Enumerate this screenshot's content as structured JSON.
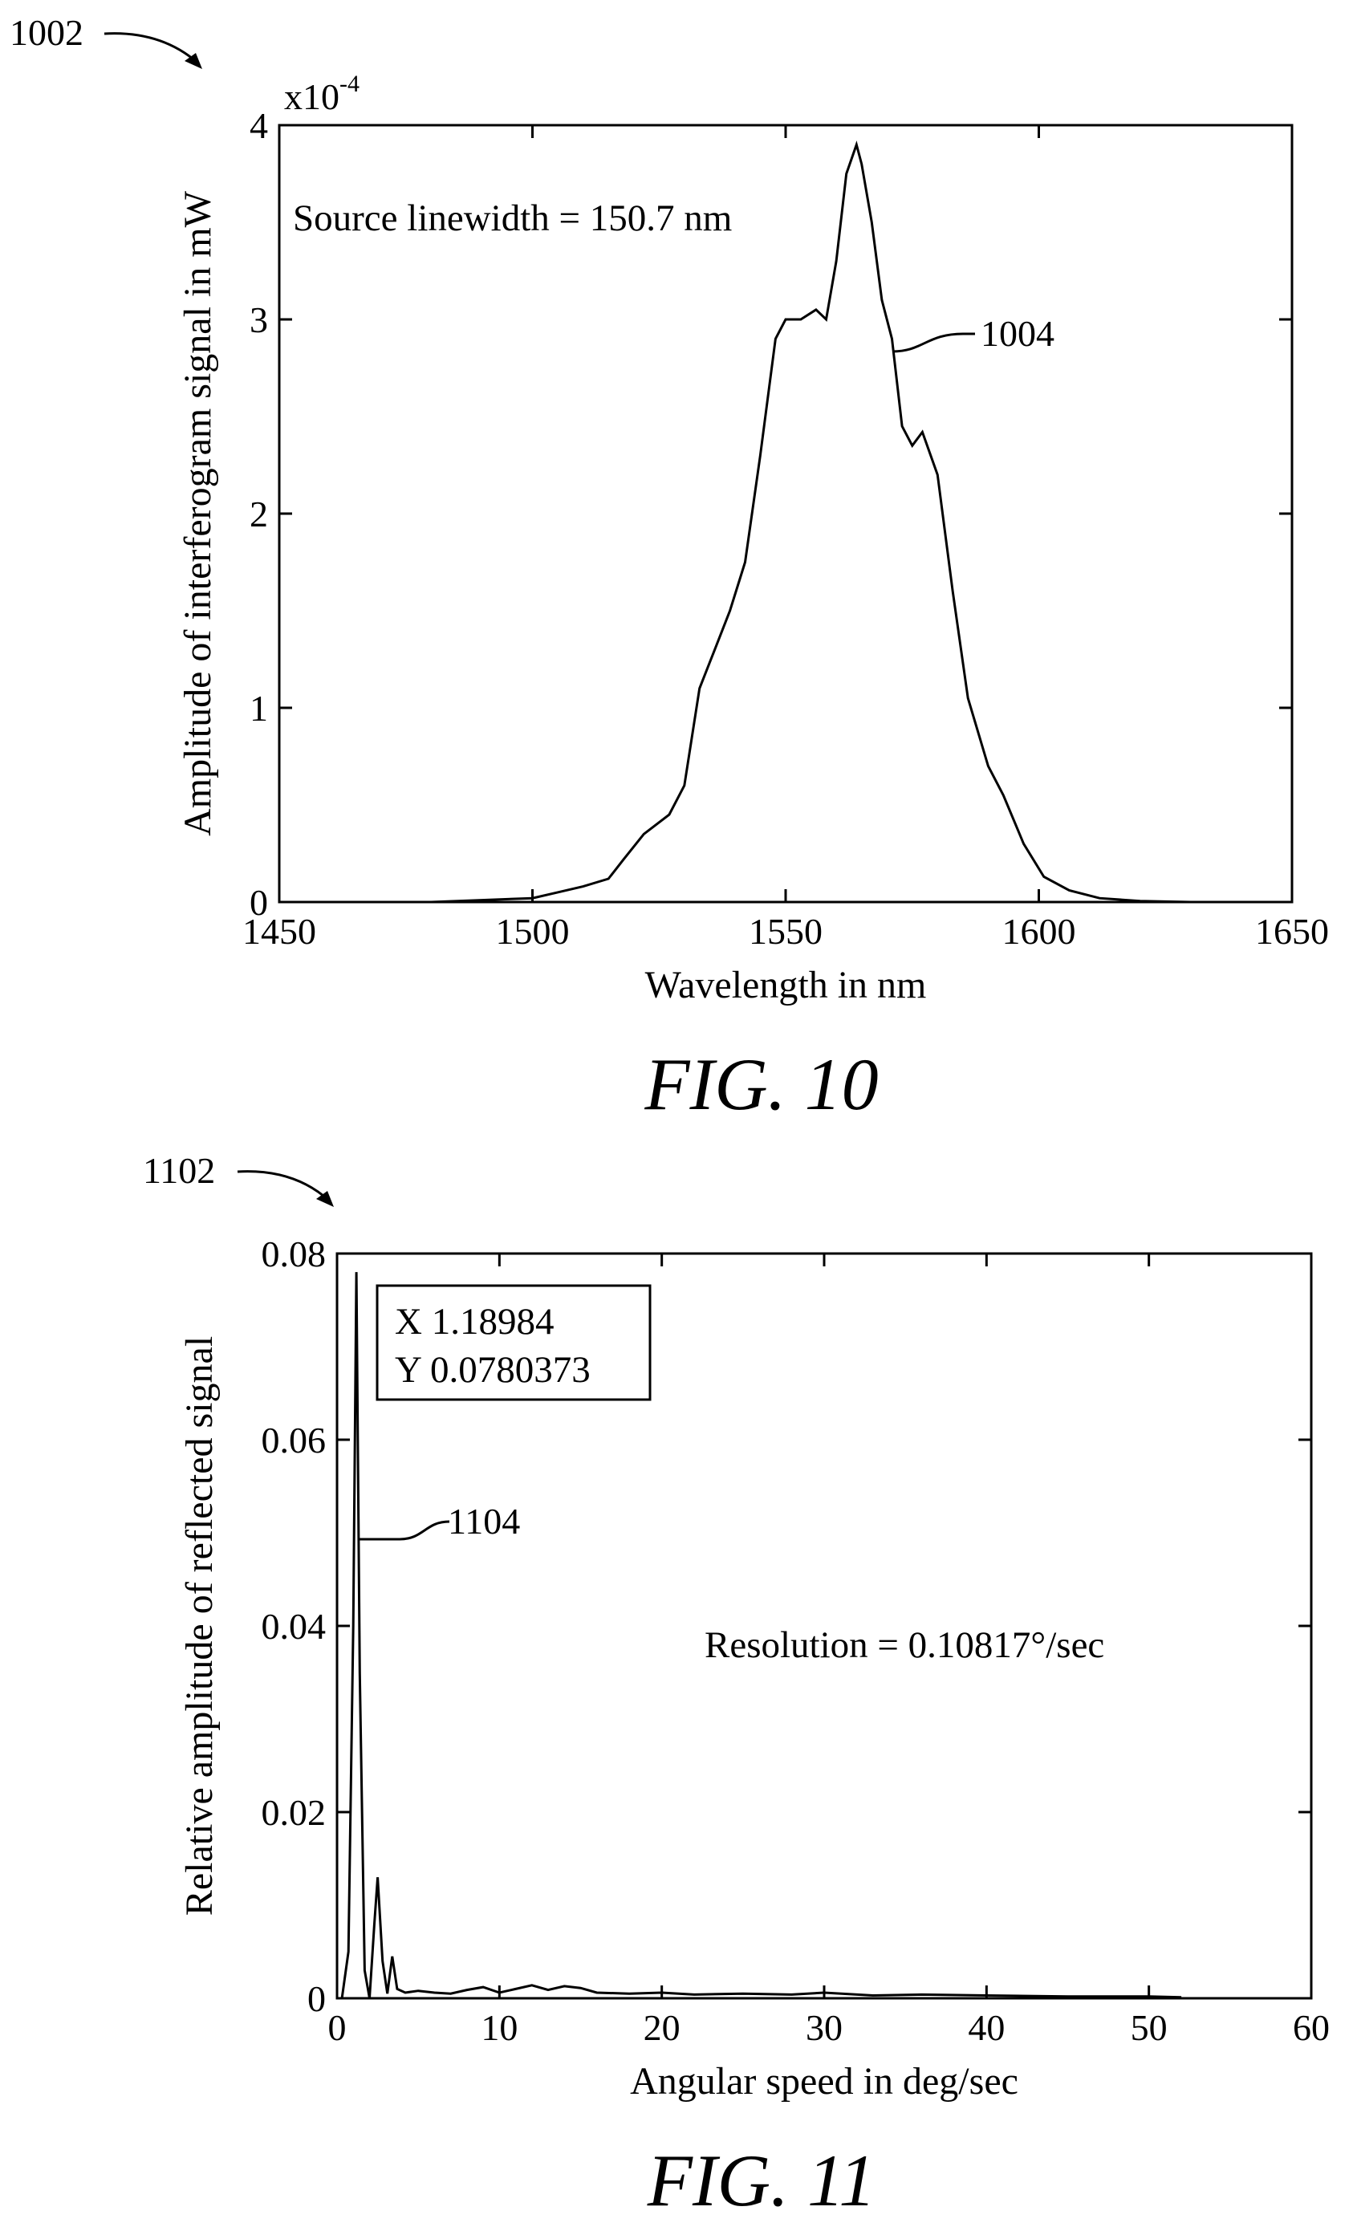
{
  "chart_data": [
    {
      "type": "line",
      "figure_label": "FIG. 10",
      "reference_numeral": "1002",
      "curve_numeral": "1004",
      "xlabel": "Wavelength in nm",
      "ylabel": "Amplitude of interferogram signal in mW",
      "y_multiplier": "x10",
      "y_exponent": "-4",
      "annotation": "Source linewidth = 150.7 nm",
      "xlim": [
        1450,
        1650
      ],
      "ylim": [
        0,
        4
      ],
      "xticks": [
        "1450",
        "1500",
        "1550",
        "1600",
        "1650"
      ],
      "yticks": [
        "0",
        "1",
        "2",
        "3",
        "4"
      ],
      "grid": false,
      "series": [
        {
          "x": [
            1480,
            1490,
            1500,
            1505,
            1510,
            1515,
            1518,
            1522,
            1527,
            1530,
            1533,
            1536,
            1539,
            1542,
            1545,
            1548,
            1550,
            1553,
            1556,
            1558,
            1560,
            1562,
            1564,
            1565,
            1567,
            1569,
            1571,
            1573,
            1575,
            1577,
            1580,
            1583,
            1586,
            1590,
            1593,
            1597,
            1601,
            1606,
            1612,
            1620,
            1630
          ],
          "y": [
            0.0,
            0.01,
            0.02,
            0.05,
            0.08,
            0.12,
            0.22,
            0.35,
            0.45,
            0.6,
            1.1,
            1.3,
            1.5,
            1.75,
            2.3,
            2.9,
            3.0,
            3.0,
            3.05,
            3.0,
            3.3,
            3.75,
            3.9,
            3.8,
            3.5,
            3.1,
            2.9,
            2.45,
            2.35,
            2.42,
            2.2,
            1.6,
            1.05,
            0.7,
            0.55,
            0.3,
            0.13,
            0.06,
            0.02,
            0.005,
            0.0
          ]
        }
      ]
    },
    {
      "type": "line",
      "figure_label": "FIG. 11",
      "reference_numeral": "1102",
      "curve_numeral": "1104",
      "xlabel": "Angular speed in deg/sec",
      "ylabel": "Relative amplitude of reflected signal",
      "annotation": "Resolution = 0.10817°/sec",
      "datatip": {
        "x_text": "X 1.18984",
        "y_text": "Y 0.0780373"
      },
      "xlim": [
        0,
        60
      ],
      "ylim": [
        0,
        0.08
      ],
      "xticks": [
        "0",
        "10",
        "20",
        "30",
        "40",
        "50",
        "60"
      ],
      "yticks": [
        "0",
        "0.02",
        "0.04",
        "0.06",
        "0.08"
      ],
      "grid": false,
      "series": [
        {
          "x": [
            0.3,
            0.7,
            1.0,
            1.19,
            1.4,
            1.7,
            2.0,
            2.3,
            2.5,
            2.8,
            3.1,
            3.4,
            3.7,
            4.2,
            5,
            6,
            7,
            8,
            9,
            10,
            11,
            12,
            13,
            14,
            15,
            16,
            18,
            20,
            22,
            25,
            28,
            30,
            33,
            36,
            40,
            45,
            50,
            52
          ],
          "y": [
            0.0,
            0.005,
            0.04,
            0.078,
            0.035,
            0.003,
            0.0,
            0.008,
            0.013,
            0.004,
            0.0005,
            0.0045,
            0.001,
            0.0006,
            0.0008,
            0.0006,
            0.0005,
            0.0009,
            0.0012,
            0.0006,
            0.001,
            0.0014,
            0.0009,
            0.0013,
            0.0011,
            0.0006,
            0.0005,
            0.0006,
            0.0004,
            0.0005,
            0.0004,
            0.0006,
            0.0003,
            0.0004,
            0.0003,
            0.0002,
            0.0002,
            0.0001
          ]
        }
      ]
    }
  ]
}
